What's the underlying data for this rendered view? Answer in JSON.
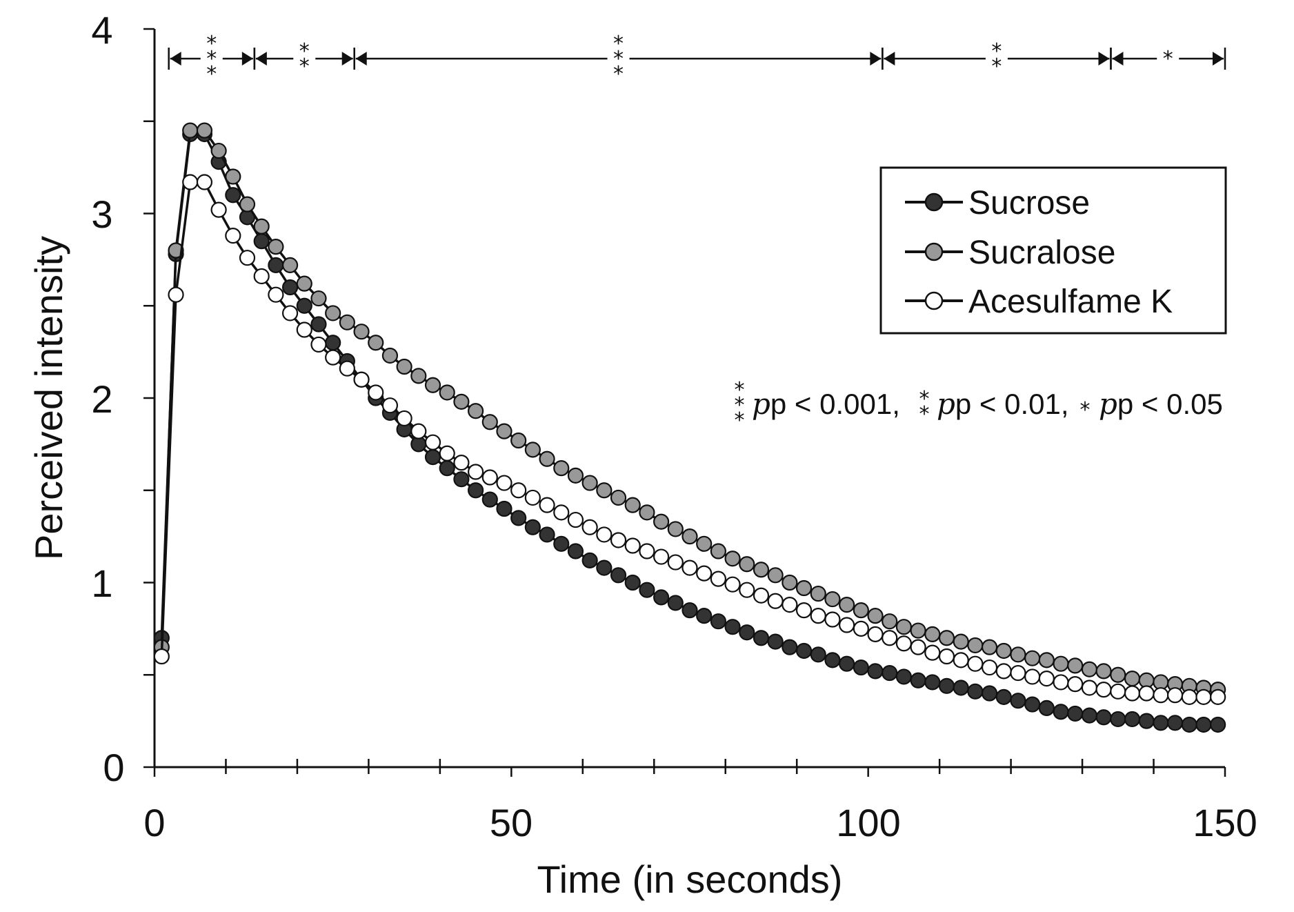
{
  "chart_data": {
    "type": "line",
    "title": "",
    "xlabel": "Time (in seconds)",
    "ylabel": "Perceived intensity",
    "xlim": [
      0,
      150
    ],
    "ylim": [
      0,
      4
    ],
    "x_ticks": [
      "0",
      "50",
      "100",
      "150"
    ],
    "y_ticks": [
      "0",
      "1",
      "2",
      "3",
      "4"
    ],
    "grid": false,
    "legend_position": "top-right",
    "x": [
      1,
      3,
      5,
      7,
      9,
      11,
      13,
      15,
      17,
      19,
      21,
      23,
      25,
      27,
      29,
      31,
      33,
      35,
      37,
      39,
      41,
      43,
      45,
      47,
      49,
      51,
      53,
      55,
      57,
      59,
      61,
      63,
      65,
      67,
      69,
      71,
      73,
      75,
      77,
      79,
      81,
      83,
      85,
      87,
      89,
      91,
      93,
      95,
      97,
      99,
      101,
      103,
      105,
      107,
      109,
      111,
      113,
      115,
      117,
      119,
      121,
      123,
      125,
      127,
      129,
      131,
      133,
      135,
      137,
      139,
      141,
      143,
      145,
      147,
      149
    ],
    "series": [
      {
        "name": "Sucrose",
        "fill": "#333333",
        "values": [
          0.7,
          2.78,
          3.43,
          3.43,
          3.28,
          3.1,
          2.98,
          2.85,
          2.72,
          2.6,
          2.5,
          2.4,
          2.3,
          2.2,
          2.1,
          2.0,
          1.92,
          1.83,
          1.75,
          1.68,
          1.62,
          1.56,
          1.5,
          1.45,
          1.4,
          1.35,
          1.3,
          1.26,
          1.21,
          1.17,
          1.12,
          1.08,
          1.04,
          1.0,
          0.96,
          0.92,
          0.89,
          0.85,
          0.82,
          0.79,
          0.76,
          0.73,
          0.7,
          0.68,
          0.65,
          0.63,
          0.61,
          0.58,
          0.56,
          0.54,
          0.52,
          0.51,
          0.49,
          0.47,
          0.46,
          0.44,
          0.43,
          0.41,
          0.4,
          0.38,
          0.36,
          0.34,
          0.32,
          0.3,
          0.29,
          0.28,
          0.27,
          0.26,
          0.26,
          0.25,
          0.24,
          0.24,
          0.23,
          0.23,
          0.23
        ]
      },
      {
        "name": "Sucralose",
        "fill": "#999999",
        "values": [
          0.65,
          2.8,
          3.45,
          3.45,
          3.34,
          3.2,
          3.05,
          2.93,
          2.82,
          2.72,
          2.62,
          2.54,
          2.46,
          2.41,
          2.36,
          2.3,
          2.23,
          2.17,
          2.12,
          2.07,
          2.03,
          1.98,
          1.93,
          1.87,
          1.82,
          1.77,
          1.72,
          1.67,
          1.62,
          1.58,
          1.54,
          1.5,
          1.46,
          1.42,
          1.38,
          1.33,
          1.29,
          1.25,
          1.21,
          1.17,
          1.13,
          1.1,
          1.07,
          1.04,
          1.0,
          0.97,
          0.94,
          0.91,
          0.88,
          0.85,
          0.82,
          0.79,
          0.76,
          0.74,
          0.72,
          0.7,
          0.68,
          0.66,
          0.65,
          0.63,
          0.61,
          0.59,
          0.58,
          0.56,
          0.55,
          0.53,
          0.52,
          0.5,
          0.48,
          0.47,
          0.46,
          0.45,
          0.44,
          0.43,
          0.42
        ]
      },
      {
        "name": "Acesulfame K",
        "fill": "#ffffff",
        "values": [
          0.6,
          2.56,
          3.17,
          3.17,
          3.02,
          2.88,
          2.76,
          2.66,
          2.56,
          2.46,
          2.37,
          2.29,
          2.22,
          2.16,
          2.1,
          2.03,
          1.96,
          1.89,
          1.82,
          1.76,
          1.7,
          1.65,
          1.6,
          1.57,
          1.54,
          1.5,
          1.46,
          1.42,
          1.38,
          1.34,
          1.3,
          1.26,
          1.23,
          1.2,
          1.17,
          1.14,
          1.11,
          1.08,
          1.05,
          1.02,
          0.99,
          0.96,
          0.93,
          0.9,
          0.88,
          0.85,
          0.82,
          0.8,
          0.77,
          0.75,
          0.72,
          0.7,
          0.67,
          0.65,
          0.62,
          0.6,
          0.58,
          0.56,
          0.54,
          0.52,
          0.51,
          0.49,
          0.48,
          0.46,
          0.45,
          0.43,
          0.42,
          0.41,
          0.4,
          0.4,
          0.39,
          0.39,
          0.38,
          0.38,
          0.38
        ]
      }
    ],
    "significance_brackets": [
      {
        "from": 2,
        "to": 14,
        "stars": 3
      },
      {
        "from": 14,
        "to": 28,
        "stars": 2
      },
      {
        "from": 28,
        "to": 102,
        "stars": 3
      },
      {
        "from": 102,
        "to": 134,
        "stars": 2
      },
      {
        "from": 134,
        "to": 150,
        "stars": 1
      }
    ],
    "annotations": {
      "p001": "p < 0.001,",
      "p01": "p < 0.01,",
      "p05": "p < 0.05"
    }
  }
}
